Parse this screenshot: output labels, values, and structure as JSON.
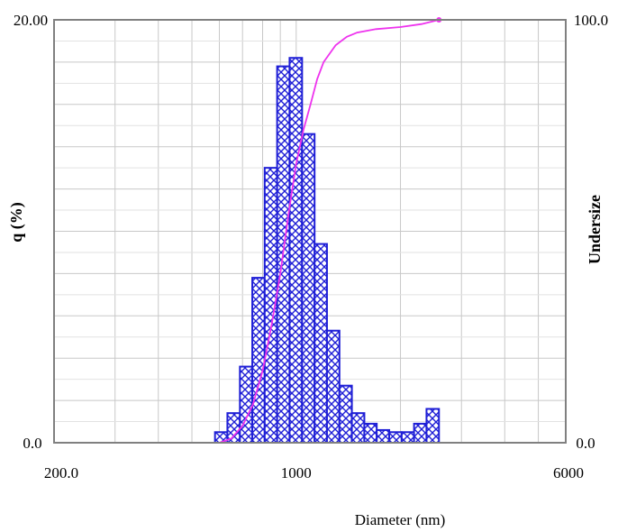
{
  "chart_data": {
    "type": "bar",
    "xlabel": "Diameter (nm)",
    "ylabel": "q (%)",
    "y2label": "Undersize",
    "x_scale": "log",
    "xlim": [
      200,
      6000
    ],
    "ylim": [
      0,
      20
    ],
    "y2lim": [
      0,
      100
    ],
    "x_tick_labels": [
      "200.0",
      "1000",
      "6000"
    ],
    "y_tick_labels": [
      "0.0",
      "20.00"
    ],
    "y2_tick_labels": [
      "0.0",
      "100.0"
    ],
    "grid": true,
    "bins": [
      {
        "from": 583,
        "to": 633,
        "q": 0.5
      },
      {
        "from": 633,
        "to": 688,
        "q": 1.4
      },
      {
        "from": 688,
        "to": 747,
        "q": 3.6
      },
      {
        "from": 747,
        "to": 811,
        "q": 7.8
      },
      {
        "from": 811,
        "to": 881,
        "q": 13.0
      },
      {
        "from": 881,
        "to": 957,
        "q": 17.8
      },
      {
        "from": 957,
        "to": 1040,
        "q": 18.2
      },
      {
        "from": 1040,
        "to": 1130,
        "q": 14.6
      },
      {
        "from": 1130,
        "to": 1227,
        "q": 9.4
      },
      {
        "from": 1227,
        "to": 1333,
        "q": 5.3
      },
      {
        "from": 1333,
        "to": 1448,
        "q": 2.7
      },
      {
        "from": 1448,
        "to": 1573,
        "q": 1.4
      },
      {
        "from": 1573,
        "to": 1708,
        "q": 0.9
      },
      {
        "from": 1708,
        "to": 1856,
        "q": 0.6
      },
      {
        "from": 1856,
        "to": 2016,
        "q": 0.5
      },
      {
        "from": 2016,
        "to": 2189,
        "q": 0.5
      },
      {
        "from": 2189,
        "to": 2378,
        "q": 0.9
      },
      {
        "from": 2378,
        "to": 2583,
        "q": 1.6
      }
    ],
    "undersize_curve": {
      "x": [
        600,
        650,
        700,
        750,
        800,
        850,
        900,
        950,
        1000,
        1050,
        1100,
        1150,
        1200,
        1300,
        1400,
        1500,
        1700,
        2000,
        2300,
        2583
      ],
      "y": [
        0,
        1,
        4,
        9,
        17,
        28,
        40,
        54,
        66,
        74,
        80,
        86,
        90,
        94,
        96,
        97,
        97.8,
        98.3,
        99.0,
        100
      ]
    },
    "colors": {
      "bar_stroke": "#1f1fd6",
      "bar_hatch": "#1f1fd6",
      "bar_fill": "#ffffff",
      "curve": "#ee33ee",
      "grid": "#c8c8c8",
      "frame": "#808080",
      "minor_grid": "#e2e2e2"
    }
  }
}
